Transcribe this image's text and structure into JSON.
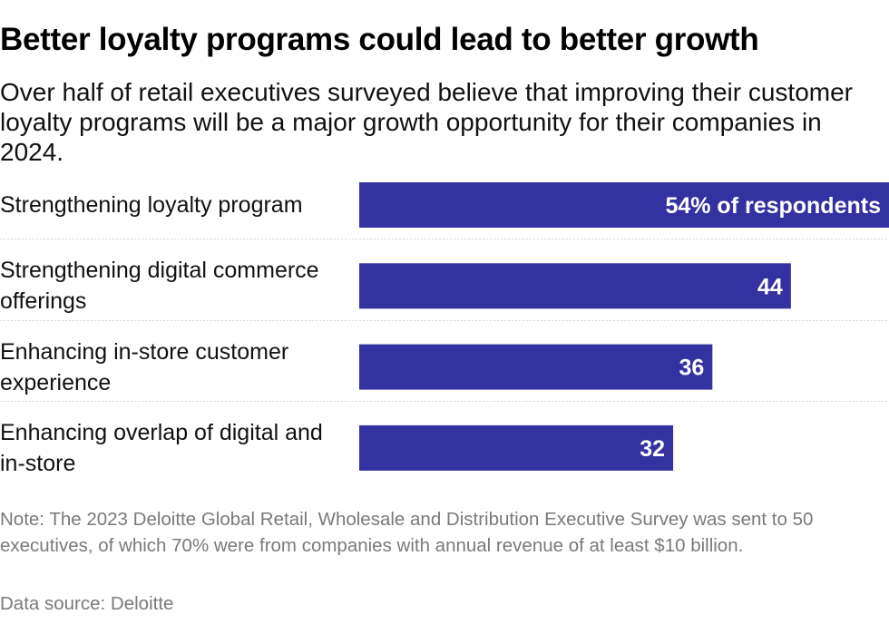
{
  "colors": {
    "bar": "#3431a1",
    "bar_label": "#ffffff",
    "separator": "#d6d6d6"
  },
  "title": "Better loyalty programs could lead to better growth",
  "subtitle": "Over half of retail executives surveyed believe that improving their customer loyalty programs will be a major growth opportunity for their companies in 2024.",
  "note": "Note: The 2023 Deloitte Global Retail, Wholesale and Distribution Executive Survey was sent to 50 executives, of which 70% were from companies with annual revenue of at least $10 billion.",
  "source": "Data source: Deloitte",
  "chart_data": {
    "type": "bar",
    "orientation": "horizontal",
    "categories": [
      "Strengthening loyalty program",
      "Strengthening digital commerce offerings",
      "Enhancing in-store customer experience",
      "Enhancing overlap of digital and in-store"
    ],
    "values": [
      54,
      44,
      36,
      32
    ],
    "value_labels": [
      "54% of respondents",
      "44",
      "36",
      "32"
    ],
    "unit": "% of respondents",
    "xlim": [
      0,
      54
    ],
    "title": "Better loyalty programs could lead to better growth",
    "xlabel": "",
    "ylabel": "",
    "grid": false,
    "legend": "none"
  }
}
